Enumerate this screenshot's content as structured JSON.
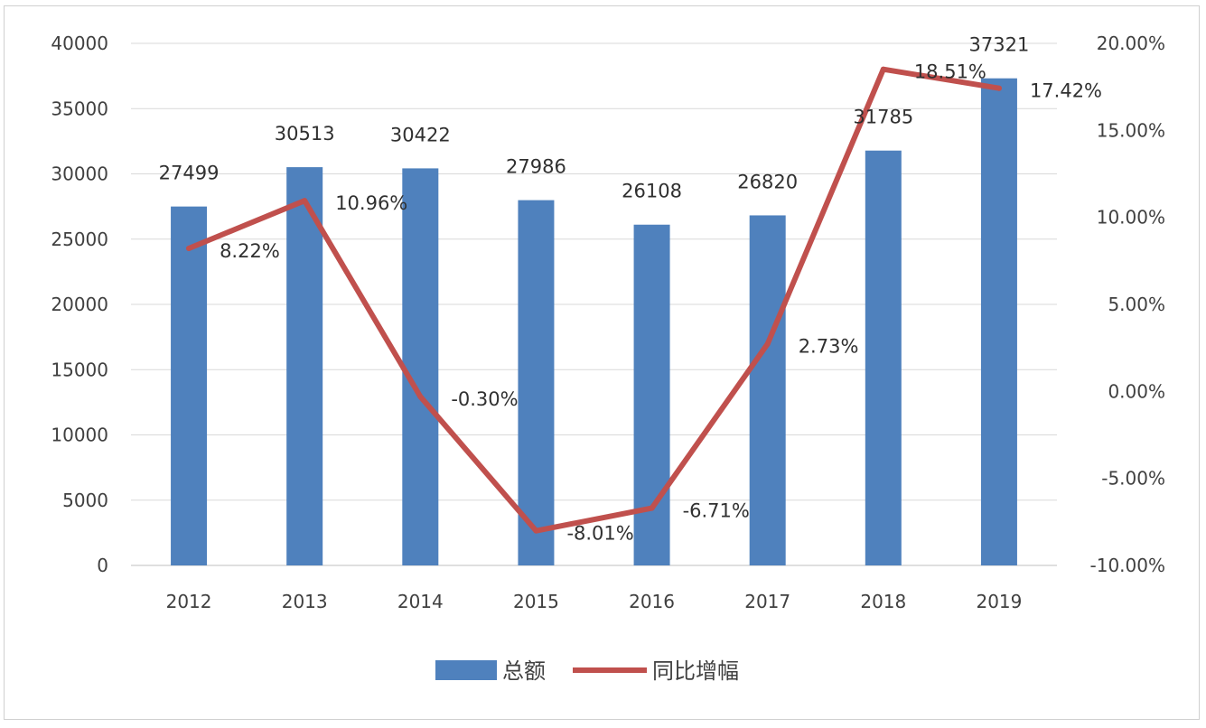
{
  "chart_data": {
    "type": "bar",
    "categories": [
      "2012",
      "2013",
      "2014",
      "2015",
      "2016",
      "2017",
      "2018",
      "2019"
    ],
    "series": [
      {
        "name": "总额",
        "type": "bar",
        "axis": "left",
        "color": "#4f81bd",
        "values": [
          27499,
          30513,
          30422,
          27986,
          26108,
          26820,
          31785,
          37321
        ],
        "labels": [
          "27499",
          "30513",
          "30422",
          "27986",
          "26108",
          "26820",
          "31785",
          "37321"
        ]
      },
      {
        "name": "同比增幅",
        "type": "line",
        "axis": "right",
        "color": "#c0504d",
        "values": [
          8.22,
          10.96,
          -0.3,
          -8.01,
          -6.71,
          2.73,
          18.51,
          17.42
        ],
        "labels": [
          "8.22%",
          "10.96%",
          "-0.30%",
          "-8.01%",
          "-6.71%",
          "2.73%",
          "18.51%",
          "17.42%"
        ]
      }
    ],
    "y_left": {
      "ylim": [
        0,
        40000
      ],
      "ticks": [
        "0",
        "5000",
        "10000",
        "15000",
        "20000",
        "25000",
        "30000",
        "35000",
        "40000"
      ]
    },
    "y_right": {
      "ylim": [
        -10,
        20
      ],
      "ticks": [
        "-10.00%",
        "-5.00%",
        "0.00%",
        "5.00%",
        "10.00%",
        "15.00%",
        "20.00%"
      ]
    },
    "grid": true,
    "legend": "bottom-center"
  }
}
